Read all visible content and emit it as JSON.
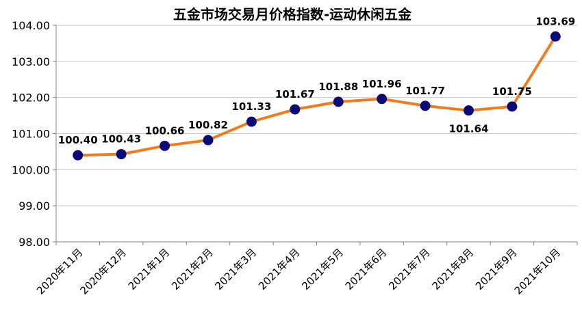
{
  "chart_data": {
    "type": "line",
    "title": "五金市场交易月价格指数-运动休闲五金",
    "xlabel": "",
    "ylabel": "",
    "categories": [
      "2020年11月",
      "2020年12月",
      "2021年1月",
      "2021年2月",
      "2021年3月",
      "2021年4月",
      "2021年5月",
      "2021年6月",
      "2021年7月",
      "2021年8月",
      "2021年9月",
      "2021年10月"
    ],
    "series": [
      {
        "values": [
          100.4,
          100.43,
          100.66,
          100.82,
          101.33,
          101.67,
          101.88,
          101.96,
          101.77,
          101.64,
          101.75,
          103.69
        ],
        "labels": [
          "100.40",
          "100.43",
          "100.66",
          "100.82",
          "101.33",
          "101.67",
          "101.88",
          "101.96",
          "101.77",
          "101.64",
          "101.75",
          "103.69"
        ]
      }
    ],
    "ylim": [
      98.0,
      104.0
    ],
    "yticks": [
      "98.00",
      "99.00",
      "100.00",
      "101.00",
      "102.00",
      "103.00",
      "104.00"
    ],
    "grid": true,
    "legend": "none",
    "colors": {
      "line": "#f07c1e",
      "marker": "#0a0a78",
      "grid": "#c8c8c8",
      "axis": "#808080"
    }
  }
}
